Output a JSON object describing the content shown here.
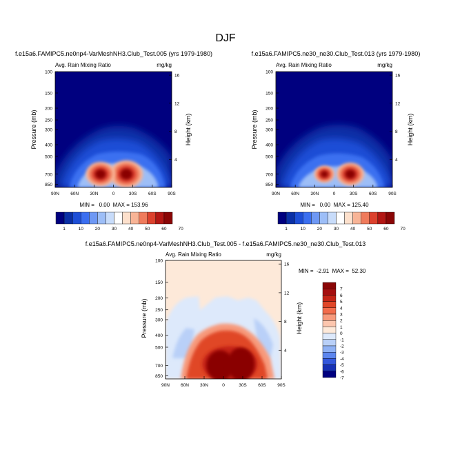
{
  "figure": {
    "title": "DJF"
  },
  "chart_data": [
    {
      "type": "heatmap",
      "title": "f.e15a6.FAMIPC5.ne0np4-VarMeshNH3.Club_Test.005 (yrs 1979-1980)",
      "left_label": "Avg. Rain Mixing Ratio",
      "right_label": "mg/kg",
      "xlabel": "",
      "ylabel": "Pressure (mb)",
      "ylabel_right": "Height (km)",
      "x_ticks": [
        "90N",
        "60N",
        "30N",
        "0",
        "30S",
        "60S",
        "90S"
      ],
      "y_ticks": [
        "100",
        "150",
        "200",
        "250",
        "300",
        "400",
        "500",
        "700",
        "850"
      ],
      "y_ticks_right": [
        "16",
        "12",
        "8",
        "4"
      ],
      "stats": "MIN =   0.00  MAX = 153.96",
      "colorbar": {
        "labels": [
          "1",
          "10",
          "20",
          "30",
          "40",
          "50",
          "60",
          "70"
        ]
      },
      "blobs": [
        {
          "lat": -20,
          "p": 700,
          "value": 90
        },
        {
          "lat": 20,
          "p": 700,
          "value": 80
        }
      ]
    },
    {
      "type": "heatmap",
      "title": "f.e15a6.FAMIPC5.ne30_ne30.Club_Test.013 (yrs 1979-1980)",
      "left_label": "Avg. Rain Mixing Ratio",
      "right_label": "mg/kg",
      "xlabel": "",
      "ylabel": "Pressure (mb)",
      "ylabel_right": "Height (km)",
      "x_ticks": [
        "90N",
        "60N",
        "30N",
        "0",
        "30S",
        "60S",
        "90S"
      ],
      "y_ticks": [
        "100",
        "150",
        "200",
        "250",
        "300",
        "400",
        "500",
        "700",
        "850"
      ],
      "y_ticks_right": [
        "16",
        "12",
        "8",
        "4"
      ],
      "stats": "MIN =   0.00  MAX = 125.40",
      "colorbar": {
        "labels": [
          "1",
          "10",
          "20",
          "30",
          "40",
          "50",
          "60",
          "70"
        ]
      },
      "blobs": [
        {
          "lat": -25,
          "p": 700,
          "value": 75
        },
        {
          "lat": 15,
          "p": 700,
          "value": 55
        }
      ]
    },
    {
      "type": "heatmap",
      "title": "f.e15a6.FAMIPC5.ne0np4-VarMeshNH3.Club_Test.005 - f.e15a6.FAMIPC5.ne30_ne30.Club_Test.013",
      "left_label": "Avg. Rain Mixing Ratio",
      "right_label": "mg/kg",
      "xlabel": "",
      "ylabel": "Pressure (mb)",
      "ylabel_right": "Height (km)",
      "x_ticks": [
        "90N",
        "60N",
        "30N",
        "0",
        "30S",
        "60S",
        "90S"
      ],
      "y_ticks": [
        "100",
        "150",
        "200",
        "250",
        "300",
        "400",
        "500",
        "700",
        "850"
      ],
      "y_ticks_right": [
        "16",
        "12",
        "8",
        "4"
      ],
      "stats": "MIN =  -2.91  MAX =  52.30",
      "colorbar": {
        "labels": [
          "7",
          "6",
          "5",
          "4",
          "3",
          "2",
          "1",
          "0",
          "-1",
          "-2",
          "-3",
          "-4",
          "-5",
          "-6",
          "-7"
        ]
      },
      "blobs": [
        {
          "lat": -10,
          "p": 650,
          "value": 7
        }
      ]
    }
  ],
  "colors": {
    "seq": [
      "#00007f",
      "#0a2fa6",
      "#1d4ed6",
      "#3b6ff0",
      "#6e98f4",
      "#9dbef7",
      "#c8dcfa",
      "#ffffff",
      "#fde0cc",
      "#f8b496",
      "#ef7b5c",
      "#dc412d",
      "#b31714",
      "#8a0606"
    ],
    "div": [
      "#8a0606",
      "#a50f0f",
      "#c42416",
      "#e04628",
      "#f26c4c",
      "#f79a7c",
      "#fcc6ae",
      "#fde9d9",
      "#dde9fb",
      "#b9d0f8",
      "#8fb1f4",
      "#5d86ee",
      "#3357dc",
      "#1731b5",
      "#00007f"
    ],
    "diff_bg": "#fde9d9"
  }
}
